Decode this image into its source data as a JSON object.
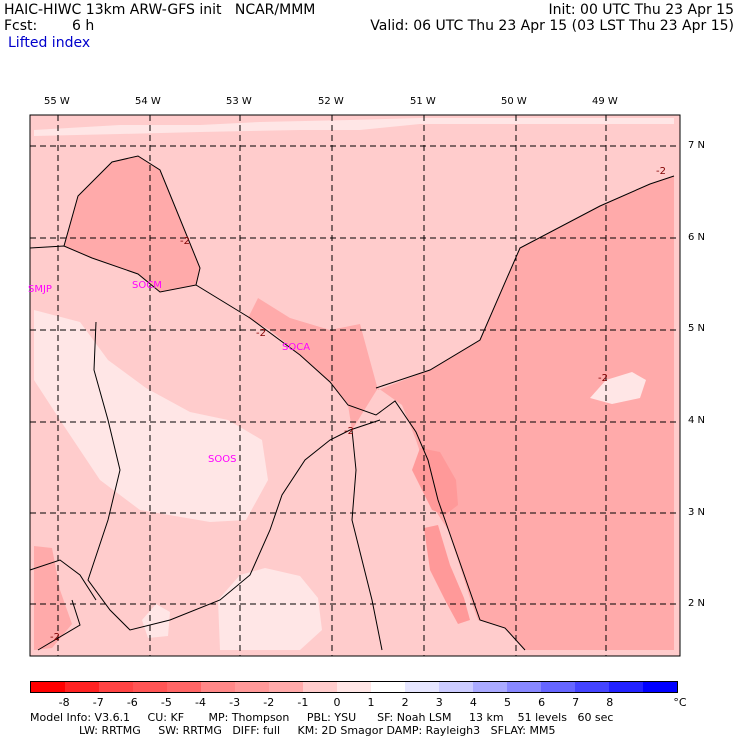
{
  "header": {
    "title": "HAIC-HIWC 13km ARW-GFS init   NCAR/MMM",
    "init": "Init: 00 UTC Thu 23 Apr 15",
    "fcst_label": "Fcst:",
    "fcst_value": "6 h",
    "valid": "Valid: 06 UTC Thu 23 Apr 15 (03 LST Thu 23 Apr 15)",
    "field": "Lifted index"
  },
  "map": {
    "lon_labels": [
      "55 W",
      "54 W",
      "53 W",
      "52 W",
      "51 W",
      "50 W",
      "49 W"
    ],
    "lat_labels": [
      "7 N",
      "6 N",
      "5 N",
      "4 N",
      "3 N",
      "2 N"
    ],
    "stations": [
      "SMJP",
      "SOCM",
      "SOCA",
      "SOOS"
    ],
    "contour_label": "-2",
    "colors": {
      "pale": "#ffe6e6",
      "light": "#ffcccc",
      "medium": "#ffaaaa",
      "strong": "#ff9999",
      "coast": "#000000"
    }
  },
  "colorbar": {
    "ticks": [
      "-8",
      "-7",
      "-6",
      "-5",
      "-4",
      "-3",
      "-2",
      "-1",
      "0",
      "1",
      "2",
      "3",
      "4",
      "5",
      "6",
      "7",
      "8"
    ],
    "unit": "°C",
    "colors": [
      "#ff0000",
      "#ff2222",
      "#ff4444",
      "#ff5555",
      "#ff6666",
      "#ff8888",
      "#ff9999",
      "#ffaaaa",
      "#ffcccc",
      "#ffe6e6",
      "#ffffff",
      "#e6e6ff",
      "#ccccff",
      "#aaaaff",
      "#8888ff",
      "#6666ff",
      "#4444ff",
      "#2222ff",
      "#0000ff"
    ]
  },
  "footer": {
    "line1": "Model Info: V3.6.1     CU: KF       MP: Thompson     PBL: YSU      SF: Noah LSM     13 km    51 levels   60 sec",
    "line2": "              LW: RRTMG     SW: RRTMG   DIFF: full     KM: 2D Smagor DAMP: Rayleigh3   SFLAY: MM5"
  }
}
